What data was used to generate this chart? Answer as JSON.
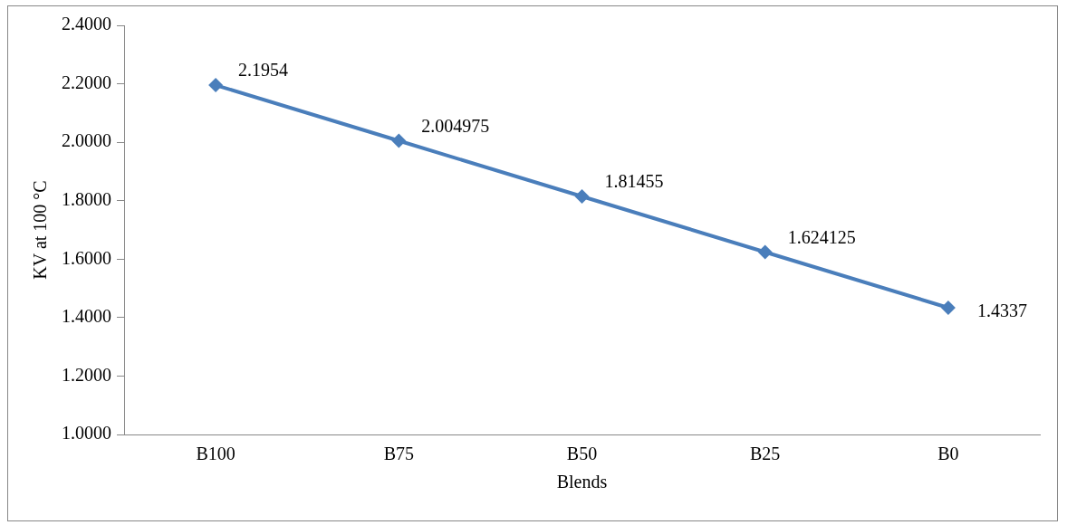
{
  "chart_data": {
    "type": "line",
    "xlabel": "Blends",
    "ylabel": "KV at 100 °C",
    "categories": [
      "B100",
      "B75",
      "B50",
      "B25",
      "B0"
    ],
    "series": [
      {
        "color": "#4a7ebb",
        "values": [
          2.1954,
          2.004975,
          1.81455,
          1.624125,
          1.4337
        ]
      }
    ],
    "ylim": [
      1.0,
      2.4
    ],
    "yticks": [
      {
        "value": 1.0,
        "label": "1.0000"
      },
      {
        "value": 1.2,
        "label": "1.2000"
      },
      {
        "value": 1.4,
        "label": "1.4000"
      },
      {
        "value": 1.6,
        "label": "1.6000"
      },
      {
        "value": 1.8,
        "label": "1.8000"
      },
      {
        "value": 2.0,
        "label": "2.0000"
      },
      {
        "value": 2.2,
        "label": "2.2000"
      },
      {
        "value": 2.4,
        "label": "2.4000"
      }
    ],
    "grid": false,
    "legend": false,
    "marker": "diamond",
    "line_style": "solid",
    "data_labels": true
  }
}
